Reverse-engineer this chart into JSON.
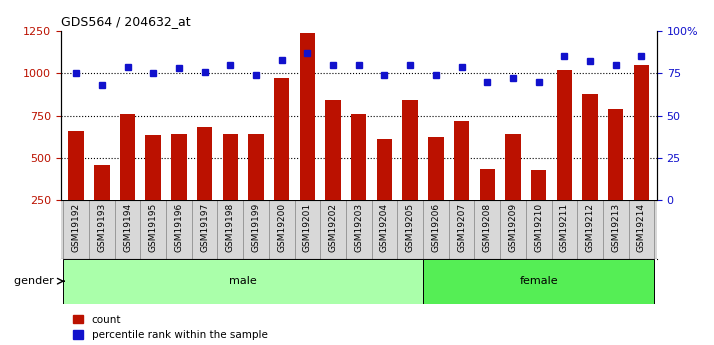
{
  "title": "GDS564 / 204632_at",
  "samples": [
    "GSM19192",
    "GSM19193",
    "GSM19194",
    "GSM19195",
    "GSM19196",
    "GSM19197",
    "GSM19198",
    "GSM19199",
    "GSM19200",
    "GSM19201",
    "GSM19202",
    "GSM19203",
    "GSM19204",
    "GSM19205",
    "GSM19206",
    "GSM19207",
    "GSM19208",
    "GSM19209",
    "GSM19210",
    "GSM19211",
    "GSM19212",
    "GSM19213",
    "GSM19214"
  ],
  "counts": [
    660,
    455,
    760,
    635,
    640,
    680,
    640,
    640,
    975,
    1240,
    840,
    760,
    610,
    840,
    625,
    715,
    435,
    640,
    430,
    1020,
    880,
    790,
    1050
  ],
  "percentile_ranks": [
    75,
    68,
    79,
    75,
    78,
    76,
    80,
    74,
    83,
    87,
    80,
    80,
    74,
    80,
    74,
    79,
    70,
    72,
    70,
    85,
    82,
    80,
    85
  ],
  "gender": [
    "male",
    "male",
    "male",
    "male",
    "male",
    "male",
    "male",
    "male",
    "male",
    "male",
    "male",
    "male",
    "male",
    "male",
    "female",
    "female",
    "female",
    "female",
    "female",
    "female",
    "female",
    "female",
    "female"
  ],
  "male_color": "#aaffaa",
  "female_color": "#55ee55",
  "bar_color": "#bb1100",
  "dot_color": "#1111cc",
  "ylim_left": [
    250,
    1250
  ],
  "ylim_right": [
    0,
    100
  ],
  "yticks_left": [
    250,
    500,
    750,
    1000,
    1250
  ],
  "yticks_right": [
    0,
    25,
    50,
    75,
    100
  ],
  "plot_bg_color": "#ffffff",
  "tick_area_bg": "#d8d8d8",
  "dotted_line_values": [
    500,
    750,
    1000
  ],
  "gender_label": "gender"
}
